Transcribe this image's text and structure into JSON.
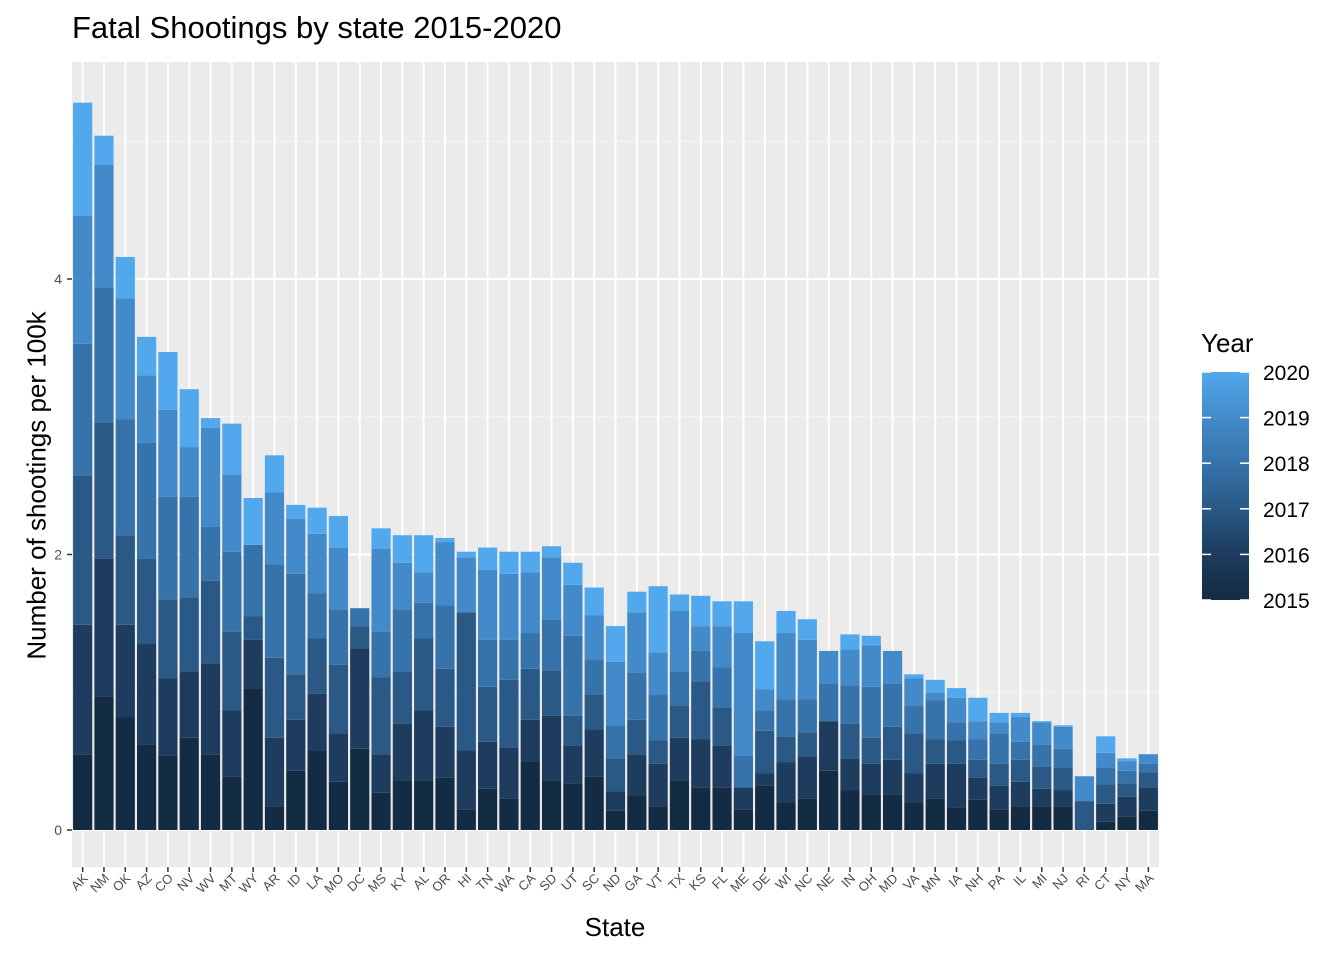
{
  "chart_data": {
    "type": "bar",
    "stacked": true,
    "title": "Fatal Shootings by state 2015-2020",
    "xlabel": "State",
    "ylabel": "Number of shootings per 100k",
    "ylim": [
      0,
      5.45
    ],
    "yticks": [
      0,
      2,
      4
    ],
    "grid": true,
    "legend": {
      "title": "Year",
      "placement": "right",
      "labels": [
        "2020",
        "2019",
        "2018",
        "2017",
        "2016",
        "2015"
      ]
    },
    "colors": {
      "2015": "#142b44",
      "2016": "#1d3c5e",
      "2017": "#2a5985",
      "2018": "#3673aa",
      "2019": "#428ac9",
      "2020": "#52a8ec",
      "panel": "#ebebeb",
      "grid_major": "#ffffff"
    },
    "categories": [
      "AK",
      "NM",
      "OK",
      "AZ",
      "CO",
      "NV",
      "WV",
      "MT",
      "WY",
      "AR",
      "ID",
      "LA",
      "MO",
      "DC",
      "MS",
      "KY",
      "AL",
      "OR",
      "HI",
      "TN",
      "WA",
      "CA",
      "SD",
      "UT",
      "SC",
      "ND",
      "GA",
      "VT",
      "TX",
      "KS",
      "FL",
      "ME",
      "DE",
      "WI",
      "NC",
      "NE",
      "IN",
      "OH",
      "MD",
      "VA",
      "MN",
      "IA",
      "NH",
      "PA",
      "IL",
      "MI",
      "NJ",
      "RI",
      "CT",
      "NY",
      "MA"
    ],
    "series": [
      {
        "name": "2015",
        "values": [
          0.55,
          0.97,
          0.82,
          0.62,
          0.54,
          0.67,
          0.55,
          0.39,
          1.03,
          0.17,
          0.43,
          0.58,
          0.35,
          0.59,
          0.27,
          0.36,
          0.36,
          0.38,
          0.15,
          0.3,
          0.23,
          0.5,
          0.36,
          0.34,
          0.39,
          0.14,
          0.25,
          0.17,
          0.36,
          0.31,
          0.31,
          0.15,
          0.32,
          0.2,
          0.23,
          0.43,
          0.29,
          0.26,
          0.26,
          0.2,
          0.23,
          0.16,
          0.22,
          0.15,
          0.17,
          0.17,
          0.17,
          0.0,
          0.06,
          0.1,
          0.14
        ]
      },
      {
        "name": "2016",
        "values": [
          0.94,
          1.0,
          0.67,
          0.73,
          0.56,
          0.48,
          0.66,
          0.48,
          0.35,
          0.5,
          0.37,
          0.41,
          0.35,
          0.73,
          0.28,
          0.41,
          0.51,
          0.37,
          0.43,
          0.34,
          0.37,
          0.3,
          0.47,
          0.27,
          0.34,
          0.14,
          0.3,
          0.31,
          0.31,
          0.35,
          0.3,
          0.16,
          0.09,
          0.29,
          0.3,
          0.36,
          0.23,
          0.22,
          0.25,
          0.21,
          0.25,
          0.32,
          0.16,
          0.17,
          0.18,
          0.13,
          0.12,
          0.0,
          0.13,
          0.14,
          0.17
        ]
      },
      {
        "name": "2017",
        "values": [
          1.08,
          0.99,
          0.65,
          0.62,
          0.57,
          0.54,
          0.6,
          0.57,
          0.17,
          0.58,
          0.33,
          0.4,
          0.5,
          0.16,
          0.56,
          0.38,
          0.52,
          0.42,
          1.0,
          0.4,
          0.49,
          0.37,
          0.33,
          0.22,
          0.25,
          0.24,
          0.25,
          0.17,
          0.23,
          0.42,
          0.28,
          0.0,
          0.31,
          0.19,
          0.18,
          0.0,
          0.25,
          0.19,
          0.24,
          0.29,
          0.18,
          0.17,
          0.13,
          0.16,
          0.16,
          0.16,
          0.16,
          0.21,
          0.14,
          0.1,
          0.11
        ]
      },
      {
        "name": "2018",
        "values": [
          0.96,
          0.98,
          0.84,
          0.84,
          0.75,
          0.73,
          0.39,
          0.58,
          0.52,
          0.68,
          0.73,
          0.33,
          0.4,
          0.13,
          0.33,
          0.45,
          0.26,
          0.46,
          0.0,
          0.34,
          0.29,
          0.26,
          0.37,
          0.58,
          0.26,
          0.24,
          0.34,
          0.33,
          0.25,
          0.22,
          0.29,
          0.23,
          0.15,
          0.27,
          0.24,
          0.27,
          0.28,
          0.37,
          0.31,
          0.2,
          0.28,
          0.13,
          0.15,
          0.22,
          0.13,
          0.16,
          0.14,
          0.0,
          0.12,
          0.09,
          0.06
        ]
      },
      {
        "name": "2019",
        "values": [
          0.93,
          0.89,
          0.88,
          0.49,
          0.63,
          0.36,
          0.72,
          0.56,
          0.0,
          0.52,
          0.4,
          0.43,
          0.45,
          0.0,
          0.6,
          0.34,
          0.22,
          0.46,
          0.4,
          0.51,
          0.48,
          0.44,
          0.45,
          0.37,
          0.32,
          0.46,
          0.44,
          0.31,
          0.44,
          0.18,
          0.3,
          0.89,
          0.15,
          0.48,
          0.43,
          0.24,
          0.26,
          0.3,
          0.24,
          0.2,
          0.06,
          0.18,
          0.13,
          0.08,
          0.18,
          0.16,
          0.16,
          0.18,
          0.11,
          0.07,
          0.07
        ]
      },
      {
        "name": "2020",
        "values": [
          0.82,
          0.21,
          0.3,
          0.28,
          0.42,
          0.42,
          0.07,
          0.37,
          0.34,
          0.27,
          0.1,
          0.19,
          0.23,
          0.0,
          0.15,
          0.2,
          0.27,
          0.03,
          0.04,
          0.16,
          0.16,
          0.15,
          0.08,
          0.16,
          0.2,
          0.26,
          0.15,
          0.48,
          0.12,
          0.22,
          0.18,
          0.23,
          0.35,
          0.16,
          0.15,
          0.0,
          0.11,
          0.07,
          0.0,
          0.03,
          0.09,
          0.07,
          0.17,
          0.07,
          0.03,
          0.01,
          0.01,
          0.0,
          0.12,
          0.02,
          0.0
        ]
      }
    ]
  }
}
